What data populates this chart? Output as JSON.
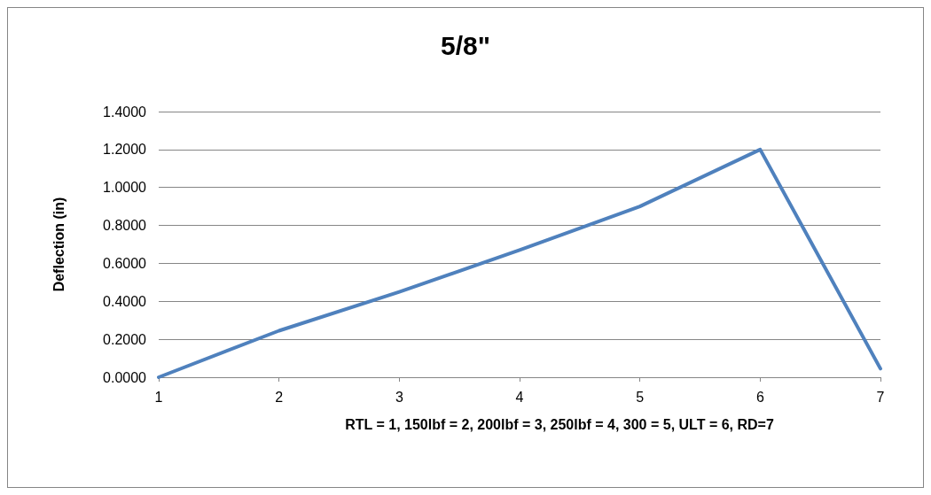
{
  "chart_data": {
    "type": "line",
    "title": "5/8\"",
    "xlabel": "RTL = 1, 150lbf = 2, 200lbf = 3, 250lbf = 4, 300 = 5, ULT = 6, RD=7",
    "ylabel": "Deflection (in)",
    "categories": [
      "1",
      "2",
      "3",
      "4",
      "5",
      "6",
      "7"
    ],
    "series": [
      {
        "color": "#4f81bd",
        "values": [
          0,
          0.245,
          0.45,
          0.67,
          0.9,
          1.2,
          0.045
        ]
      }
    ],
    "ylim": [
      0,
      1.4
    ],
    "yticks": [
      {
        "value": 0,
        "label": "0.0000"
      },
      {
        "value": 0.2,
        "label": "0.2000"
      },
      {
        "value": 0.4,
        "label": "0.4000"
      },
      {
        "value": 0.6,
        "label": "0.6000"
      },
      {
        "value": 0.8,
        "label": "0.8000"
      },
      {
        "value": 1,
        "label": "1.0000"
      },
      {
        "value": 1.2,
        "label": "1.2000"
      },
      {
        "value": 1.4,
        "label": "1.4000"
      }
    ],
    "grid": "y",
    "marker": "none",
    "line_style": "solid"
  }
}
